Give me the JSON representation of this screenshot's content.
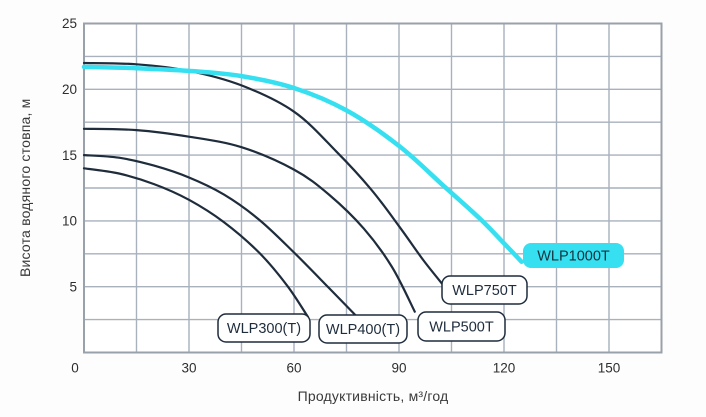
{
  "chart_data": {
    "type": "line",
    "title": "",
    "xlabel": "Продуктивність, м³/год",
    "ylabel": "Висота водяного стовпа, м",
    "xlim": [
      0,
      165
    ],
    "ylim": [
      0,
      25
    ],
    "x_tick_labels": [
      0,
      30,
      60,
      90,
      120,
      150
    ],
    "y_tick_labels": [
      5,
      10,
      15,
      20,
      25
    ],
    "x_grid_step": 15,
    "y_grid_step": 2.5,
    "grid": true,
    "legend_position": "on-curve-end-labels",
    "colors": {
      "curve": "#1e2c3c",
      "highlight": "#36e0f0",
      "grid": "#a9b1bd",
      "border": "#99a1ab",
      "tick_text": "#2e2e2e",
      "axis_text": "#3a3a3a",
      "label_text": "#1e2c3c",
      "highlight_label_text": "#16323f",
      "label_bg": "#ffffff",
      "plot_bg": "#ffffff",
      "page_bg": "#fdfdfd"
    },
    "series": [
      {
        "name": "WLP300(T)",
        "highlight": false,
        "points": [
          [
            0,
            14
          ],
          [
            10,
            13.6
          ],
          [
            20,
            12.8
          ],
          [
            30,
            11.6
          ],
          [
            40,
            9.9
          ],
          [
            50,
            7.6
          ],
          [
            58,
            5.1
          ],
          [
            64,
            2.7
          ]
        ],
        "label_box": {
          "x": 218,
          "y": 314,
          "w": 92,
          "h": 28
        }
      },
      {
        "name": "WLP400(T)",
        "highlight": false,
        "points": [
          [
            0,
            15
          ],
          [
            10,
            14.8
          ],
          [
            20,
            14.2
          ],
          [
            30,
            13.3
          ],
          [
            40,
            12.0
          ],
          [
            50,
            10.1
          ],
          [
            60,
            7.6
          ],
          [
            70,
            4.9
          ],
          [
            77.5,
            2.85
          ]
        ],
        "label_box": {
          "x": 319,
          "y": 315,
          "w": 88,
          "h": 28
        }
      },
      {
        "name": "WLP500T",
        "highlight": false,
        "points": [
          [
            0,
            17
          ],
          [
            15,
            16.9
          ],
          [
            30,
            16.4
          ],
          [
            45,
            15.6
          ],
          [
            60,
            13.9
          ],
          [
            70,
            12.0
          ],
          [
            80,
            9.4
          ],
          [
            88,
            6.5
          ],
          [
            94.5,
            3.1
          ]
        ],
        "label_box": {
          "x": 418,
          "y": 312,
          "w": 87,
          "h": 29
        }
      },
      {
        "name": "WLP750T",
        "highlight": false,
        "points": [
          [
            0,
            22
          ],
          [
            15,
            21.9
          ],
          [
            30,
            21.4
          ],
          [
            45,
            20.3
          ],
          [
            60,
            18.3
          ],
          [
            72,
            15.3
          ],
          [
            82,
            12.4
          ],
          [
            90,
            9.6
          ],
          [
            97,
            7.0
          ],
          [
            103,
            5.0
          ]
        ],
        "label_box": {
          "x": 442,
          "y": 276,
          "w": 85,
          "h": 28
        }
      },
      {
        "name": "WLP1000T",
        "highlight": true,
        "points": [
          [
            0,
            21.7
          ],
          [
            15,
            21.6
          ],
          [
            30,
            21.4
          ],
          [
            45,
            21.0
          ],
          [
            60,
            20.1
          ],
          [
            75,
            18.4
          ],
          [
            90,
            15.7
          ],
          [
            103,
            12.6
          ],
          [
            113,
            10.2
          ],
          [
            120,
            8.3
          ],
          [
            125,
            6.9
          ]
        ],
        "label_box": {
          "x": 523,
          "y": 243,
          "w": 101,
          "h": 25
        }
      }
    ]
  }
}
